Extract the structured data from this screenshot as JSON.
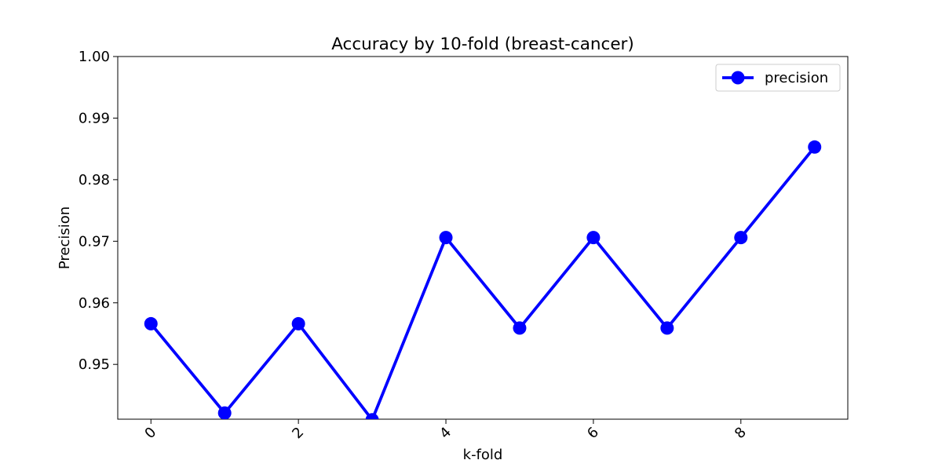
{
  "chart_data": {
    "type": "line",
    "title": "Accuracy by 10-fold (breast-cancer)",
    "xlabel": "k-fold",
    "ylabel": "Precision",
    "x": [
      0,
      1,
      2,
      3,
      4,
      5,
      6,
      7,
      8,
      9
    ],
    "series": [
      {
        "name": "precision",
        "values": [
          0.9566,
          0.9421,
          0.9566,
          0.941,
          0.9706,
          0.9559,
          0.9706,
          0.9559,
          0.9706,
          0.9853
        ],
        "color": "#0000ff",
        "marker": "circle"
      }
    ],
    "xlim": [
      -0.45,
      9.45
    ],
    "ylim": [
      0.9411,
      1.0
    ],
    "xticks": [
      "0",
      "2",
      "4",
      "6",
      "8"
    ],
    "xtick_values": [
      0,
      2,
      4,
      6,
      8
    ],
    "yticks": [
      "0.95",
      "0.96",
      "0.97",
      "0.98",
      "0.99",
      "1.00"
    ],
    "ytick_values": [
      0.95,
      0.96,
      0.97,
      0.98,
      0.99,
      1.0
    ],
    "xtick_rotation": 45,
    "grid": false,
    "legend": "top-right"
  }
}
